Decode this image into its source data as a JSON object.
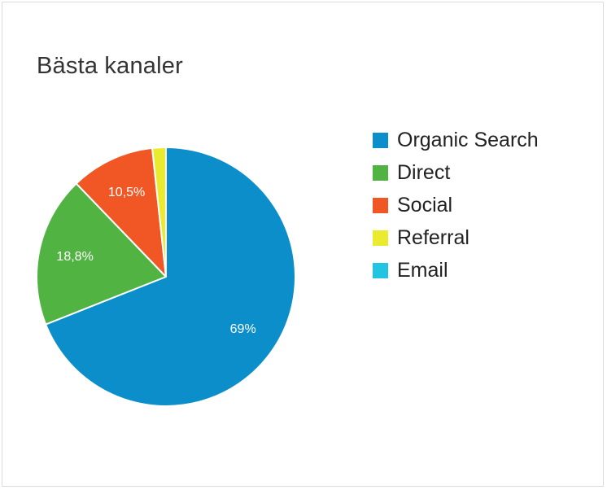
{
  "title": "Bästa kanaler",
  "chart_data": {
    "type": "pie",
    "title": "Bästa kanaler",
    "slices": [
      {
        "name": "Organic Search",
        "value": 69.0,
        "label": "69%",
        "color": "#0b8ec9"
      },
      {
        "name": "Direct",
        "value": 18.8,
        "label": "18,8%",
        "color": "#50b342"
      },
      {
        "name": "Social",
        "value": 10.5,
        "label": "10,5%",
        "color": "#f05724"
      },
      {
        "name": "Referral",
        "value": 1.7,
        "label": "",
        "color": "#eaeb2e"
      },
      {
        "name": "Email",
        "value": 0.0,
        "label": "",
        "color": "#23c4e2"
      }
    ],
    "legend": "right"
  }
}
